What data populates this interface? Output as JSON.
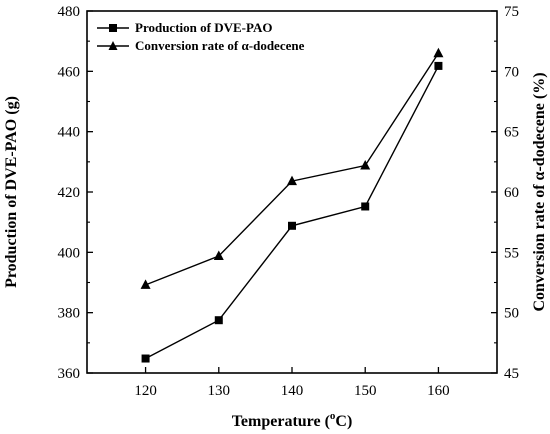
{
  "chart_data": {
    "type": "line",
    "x_label_main": "Temperature (",
    "x_label_sup": "o",
    "x_label_end": "C)",
    "y_left_label": "Production of DVE-PAO (g)",
    "y_right_label": "Conversion rate of α-dodecene (%)",
    "x": [
      120,
      130,
      140,
      150,
      160
    ],
    "xlim": [
      112,
      168
    ],
    "y_left_lim": [
      360,
      480
    ],
    "y_right_lim": [
      45,
      75
    ],
    "x_ticks": [
      120,
      130,
      140,
      150,
      160
    ],
    "y_left_ticks": [
      360,
      380,
      400,
      420,
      440,
      460,
      480
    ],
    "y_right_ticks": [
      45,
      50,
      55,
      60,
      65,
      70,
      75
    ],
    "grid": false,
    "legend_position": "top-left",
    "series": [
      {
        "name": "Production of DVE-PAO",
        "axis": "left",
        "marker": "square",
        "values": [
          364.8,
          377.5,
          408.8,
          415.2,
          461.8
        ]
      },
      {
        "name": "Conversion rate of α-dodecene",
        "axis": "right",
        "marker": "triangle",
        "values": [
          52.3,
          54.7,
          60.9,
          62.2,
          71.5
        ]
      }
    ]
  }
}
